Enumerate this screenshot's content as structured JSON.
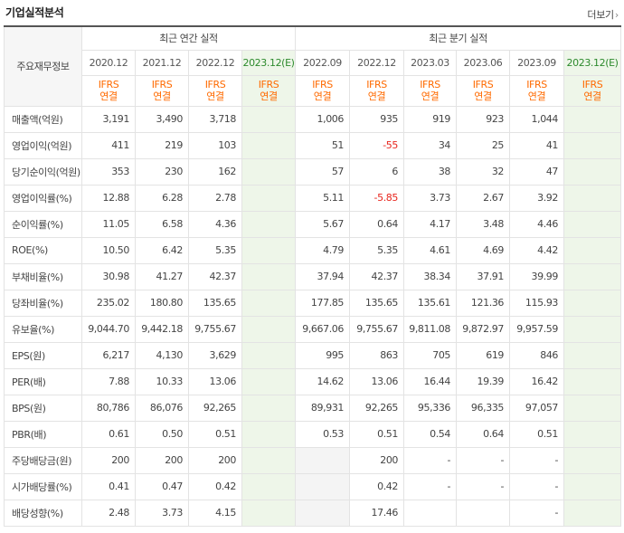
{
  "header": {
    "title": "기업실적분석",
    "more_label": "더보기",
    "more_icon": "chevron-right"
  },
  "table": {
    "corner_label": "주요재무정보",
    "annual_group": "최근 연간 실적",
    "quarter_group": "최근 분기 실적",
    "annual_periods": [
      "2020.12",
      "2021.12",
      "2022.12",
      "2023.12(E)"
    ],
    "quarter_periods": [
      "2022.09",
      "2022.12",
      "2023.03",
      "2023.06",
      "2023.09",
      "2023.12(E)"
    ],
    "acct_line1": "IFRS",
    "acct_line2": "연결",
    "colors": {
      "estimate_bg": "#eef6e9",
      "negative": "#e8251d",
      "ifrs": "#ff6a00"
    },
    "rows": [
      {
        "label": "매출액(억원)",
        "values": [
          "3,191",
          "3,490",
          "3,718",
          "",
          "1,006",
          "935",
          "919",
          "923",
          "1,044",
          ""
        ]
      },
      {
        "label": "영업이익(억원)",
        "values": [
          "411",
          "219",
          "103",
          "",
          "51",
          "-55",
          "34",
          "25",
          "41",
          ""
        ]
      },
      {
        "label": "당기순이익(억원)",
        "values": [
          "353",
          "230",
          "162",
          "",
          "57",
          "6",
          "38",
          "32",
          "47",
          ""
        ]
      },
      {
        "label": "영업이익률(%)",
        "values": [
          "12.88",
          "6.28",
          "2.78",
          "",
          "5.11",
          "-5.85",
          "3.73",
          "2.67",
          "3.92",
          ""
        ]
      },
      {
        "label": "순이익률(%)",
        "values": [
          "11.05",
          "6.58",
          "4.36",
          "",
          "5.67",
          "0.64",
          "4.17",
          "3.48",
          "4.46",
          ""
        ]
      },
      {
        "label": "ROE(%)",
        "values": [
          "10.50",
          "6.42",
          "5.35",
          "",
          "4.79",
          "5.35",
          "4.61",
          "4.69",
          "4.42",
          ""
        ]
      },
      {
        "label": "부채비율(%)",
        "values": [
          "30.98",
          "41.27",
          "42.37",
          "",
          "37.94",
          "42.37",
          "38.34",
          "37.91",
          "39.99",
          ""
        ]
      },
      {
        "label": "당좌비율(%)",
        "values": [
          "235.02",
          "180.80",
          "135.65",
          "",
          "177.85",
          "135.65",
          "135.61",
          "121.36",
          "115.93",
          ""
        ]
      },
      {
        "label": "유보율(%)",
        "values": [
          "9,044.70",
          "9,442.18",
          "9,755.67",
          "",
          "9,667.06",
          "9,755.67",
          "9,811.08",
          "9,872.97",
          "9,957.59",
          ""
        ]
      },
      {
        "label": "EPS(원)",
        "values": [
          "6,217",
          "4,130",
          "3,629",
          "",
          "995",
          "863",
          "705",
          "619",
          "846",
          ""
        ]
      },
      {
        "label": "PER(배)",
        "values": [
          "7.88",
          "10.33",
          "13.06",
          "",
          "14.62",
          "13.06",
          "16.44",
          "19.39",
          "16.42",
          ""
        ]
      },
      {
        "label": "BPS(원)",
        "values": [
          "80,786",
          "86,076",
          "92,265",
          "",
          "89,931",
          "92,265",
          "95,336",
          "96,335",
          "97,057",
          ""
        ]
      },
      {
        "label": "PBR(배)",
        "values": [
          "0.61",
          "0.50",
          "0.51",
          "",
          "0.53",
          "0.51",
          "0.54",
          "0.64",
          "0.51",
          ""
        ]
      },
      {
        "label": "주당배당금(원)",
        "values": [
          "200",
          "200",
          "200",
          "",
          "",
          "200",
          "-",
          "-",
          "-",
          ""
        ]
      },
      {
        "label": "시가배당률(%)",
        "values": [
          "0.41",
          "0.47",
          "0.42",
          "",
          "",
          "0.42",
          "-",
          "-",
          "-",
          ""
        ]
      },
      {
        "label": "배당성향(%)",
        "values": [
          "2.48",
          "3.73",
          "4.15",
          "",
          "",
          "17.46",
          "",
          "",
          "-",
          ""
        ]
      }
    ]
  }
}
